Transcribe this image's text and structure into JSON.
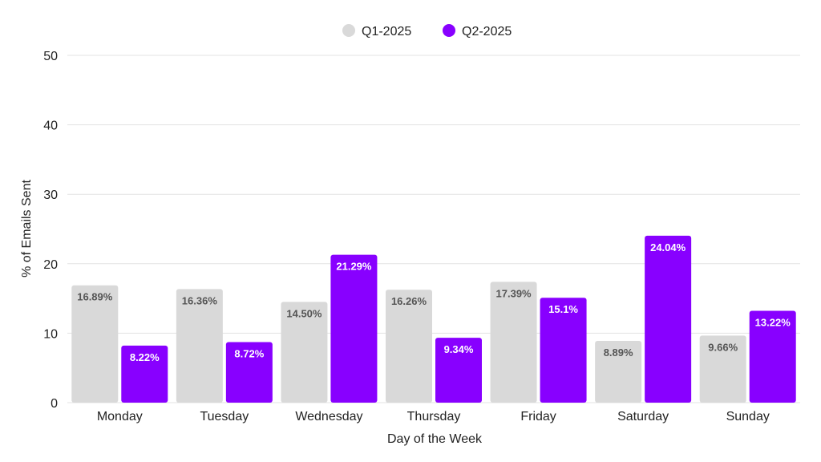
{
  "chart_data": {
    "type": "bar",
    "title": "",
    "xlabel": "Day of the Week",
    "ylabel": "% of Emails Sent",
    "ylim": [
      0,
      50
    ],
    "yticks": [
      0,
      10,
      20,
      30,
      40,
      50
    ],
    "grid": true,
    "legend_position": "top-center",
    "categories": [
      "Monday",
      "Tuesday",
      "Wednesday",
      "Thursday",
      "Friday",
      "Saturday",
      "Sunday"
    ],
    "series": [
      {
        "name": "Q1-2025",
        "color": "#d9d9d9",
        "label_color": "#555555",
        "values": [
          16.89,
          16.36,
          14.5,
          16.26,
          17.39,
          8.89,
          9.66
        ],
        "labels": [
          "16.89%",
          "16.36%",
          "14.50%",
          "16.26%",
          "17.39%",
          "8.89%",
          "9.66%"
        ]
      },
      {
        "name": "Q2-2025",
        "color": "#8800ff",
        "label_color": "#ffffff",
        "values": [
          8.22,
          8.72,
          21.29,
          9.34,
          15.1,
          24.04,
          13.22
        ],
        "labels": [
          "8.22%",
          "8.72%",
          "21.29%",
          "9.34%",
          "15.1%",
          "24.04%",
          "13.22%"
        ]
      }
    ]
  }
}
